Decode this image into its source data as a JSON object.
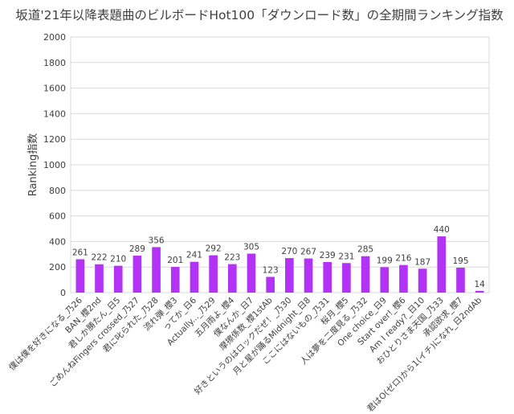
{
  "chart_data": {
    "type": "bar",
    "title": "坂道'21年以降表題曲のビルボードHot100「ダウンロード数」の全期間ランキング指数",
    "ylabel": "Ranking指数",
    "xlabel": "",
    "ylim": [
      0,
      2000
    ],
    "yticks": [
      0,
      200,
      400,
      600,
      800,
      1000,
      1200,
      1400,
      1600,
      1800,
      2000
    ],
    "grid": true,
    "bar_color": "#b233f5",
    "categories": [
      "僕は僕を好きになる_乃26",
      "BAN_櫻2nd",
      "君しか勝たん_日5",
      "ごめんねFingers crossed_乃27",
      "君に叱られた_乃28",
      "流れ弾_櫻3",
      "ってか_日6",
      "Actually..._乃29",
      "五月雨よ_櫻4",
      "僕なんか_日7",
      "摩擦係数_櫻1stAb",
      "好きというのはロックだぜ！_乃30",
      "月と星が踊るMidnight_日8",
      "ここにはないもの_乃31",
      "桜月_櫻5",
      "人は夢を二度見る_乃32",
      "One choice_日9",
      "Start over!_櫻6",
      "Am I ready?_日10",
      "おひとりさま天国_乃33",
      "承認欲求_櫻7",
      "君はO(ゼロ)から1(イチ)になれ_日2ndAb"
    ],
    "values": [
      261,
      222,
      210,
      289,
      356,
      201,
      241,
      292,
      223,
      305,
      123,
      270,
      267,
      239,
      231,
      285,
      199,
      216,
      187,
      440,
      195,
      14
    ]
  }
}
